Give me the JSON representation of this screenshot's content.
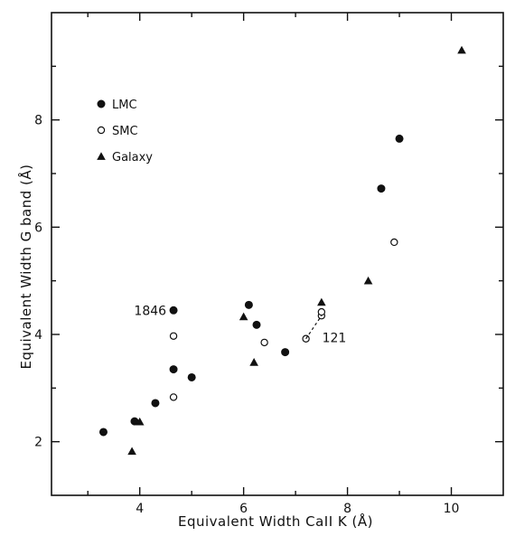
{
  "chart_data": {
    "type": "scatter",
    "title": "",
    "xlabel": "Equivalent Width    CaII K    (Å)",
    "ylabel": "Equivalent Width    G band    (Å)",
    "xlim": [
      2.3,
      11.0
    ],
    "ylim": [
      1.0,
      10.0
    ],
    "xticks": [
      4,
      6,
      8,
      10
    ],
    "yticks": [
      2,
      4,
      6,
      8
    ],
    "x_minor_ticks": [
      3,
      5,
      7,
      9
    ],
    "y_minor_ticks": [
      3,
      5,
      7,
      9
    ],
    "grid": false,
    "legend_position": "top-left",
    "series": [
      {
        "name": "LMC",
        "marker": "filled-circle",
        "points": [
          {
            "x": 3.3,
            "y": 2.18
          },
          {
            "x": 3.9,
            "y": 2.38
          },
          {
            "x": 4.3,
            "y": 2.72
          },
          {
            "x": 4.65,
            "y": 3.35
          },
          {
            "x": 4.65,
            "y": 4.45
          },
          {
            "x": 5.0,
            "y": 3.2
          },
          {
            "x": 6.1,
            "y": 4.55
          },
          {
            "x": 6.25,
            "y": 4.18
          },
          {
            "x": 6.8,
            "y": 3.67
          },
          {
            "x": 8.65,
            "y": 6.72
          },
          {
            "x": 9.0,
            "y": 7.65
          }
        ]
      },
      {
        "name": "SMC",
        "marker": "open-circle",
        "points": [
          {
            "x": 4.65,
            "y": 3.97
          },
          {
            "x": 4.65,
            "y": 2.83
          },
          {
            "x": 6.4,
            "y": 3.85
          },
          {
            "x": 7.2,
            "y": 3.92
          },
          {
            "x": 7.5,
            "y": 4.35
          },
          {
            "x": 7.5,
            "y": 4.42
          },
          {
            "x": 8.9,
            "y": 5.72
          }
        ]
      },
      {
        "name": "Galaxy",
        "marker": "filled-triangle",
        "points": [
          {
            "x": 3.85,
            "y": 1.82
          },
          {
            "x": 4.0,
            "y": 2.37
          },
          {
            "x": 6.0,
            "y": 4.33
          },
          {
            "x": 6.2,
            "y": 3.48
          },
          {
            "x": 7.5,
            "y": 4.6
          },
          {
            "x": 8.4,
            "y": 5.0
          },
          {
            "x": 10.2,
            "y": 9.3
          }
        ]
      }
    ],
    "annotations": [
      {
        "text": "1846",
        "x": 4.65,
        "y": 4.45
      },
      {
        "text": "121",
        "x": 7.2,
        "y": 3.92,
        "connects_to": {
          "x": 7.5,
          "y": 4.35
        }
      }
    ]
  }
}
